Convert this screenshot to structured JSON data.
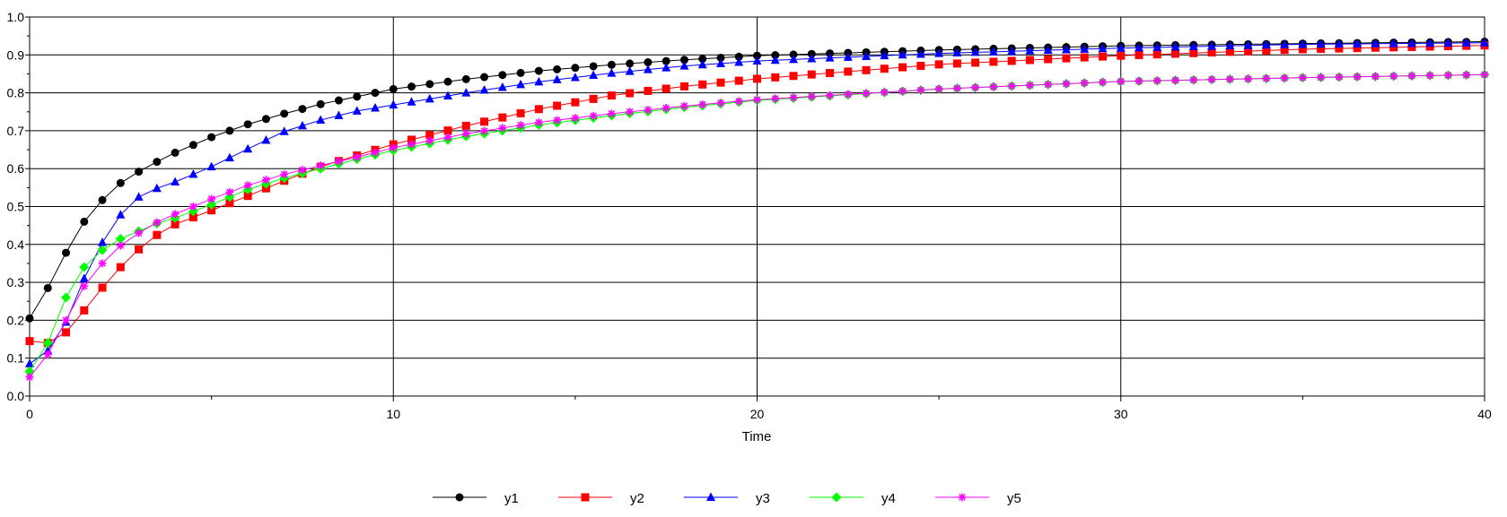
{
  "chart_data": {
    "type": "line",
    "title": "",
    "xlabel": "Time",
    "ylabel": "",
    "xlim": [
      0,
      40
    ],
    "ylim": [
      0,
      1
    ],
    "grid": true,
    "legend_position": "bottom",
    "xticks": [
      {
        "value": 0,
        "label": "0"
      },
      {
        "value": 10,
        "label": "10"
      },
      {
        "value": 20,
        "label": "20"
      },
      {
        "value": 30,
        "label": "30"
      },
      {
        "value": 40,
        "label": "40"
      }
    ],
    "yticks": [
      {
        "value": 0,
        "label": "0.0"
      },
      {
        "value": 0.1,
        "label": "0.1"
      },
      {
        "value": 0.2,
        "label": "0.2"
      },
      {
        "value": 0.3,
        "label": "0.3"
      },
      {
        "value": 0.4,
        "label": "0.4"
      },
      {
        "value": 0.5,
        "label": "0.5"
      },
      {
        "value": 0.6,
        "label": "0.6"
      },
      {
        "value": 0.7,
        "label": "0.7"
      },
      {
        "value": 0.8,
        "label": "0.8"
      },
      {
        "value": 0.9,
        "label": "0.9"
      },
      {
        "value": 1,
        "label": "1.0"
      }
    ],
    "x_step": 0.5,
    "series": [
      {
        "name": "y1",
        "color": "#000000",
        "marker": "circle",
        "anchors": [
          [
            0,
            0.205
          ],
          [
            0.5,
            0.285
          ],
          [
            1,
            0.378
          ],
          [
            1.5,
            0.46
          ],
          [
            2,
            0.517
          ],
          [
            2.5,
            0.562
          ],
          [
            3,
            0.592
          ],
          [
            3.5,
            0.618
          ],
          [
            4,
            0.642
          ],
          [
            5,
            0.683
          ],
          [
            6,
            0.717
          ],
          [
            7,
            0.745
          ],
          [
            8,
            0.77
          ],
          [
            9,
            0.79
          ],
          [
            10,
            0.81
          ],
          [
            12,
            0.836
          ],
          [
            14,
            0.858
          ],
          [
            16,
            0.874
          ],
          [
            18,
            0.887
          ],
          [
            20,
            0.898
          ],
          [
            25,
            0.913
          ],
          [
            30,
            0.924
          ],
          [
            35,
            0.93
          ],
          [
            40,
            0.935
          ]
        ]
      },
      {
        "name": "y2",
        "color": "#ff0000",
        "marker": "square",
        "anchors": [
          [
            0,
            0.145
          ],
          [
            0.5,
            0.14
          ],
          [
            1,
            0.168
          ],
          [
            1.5,
            0.226
          ],
          [
            2,
            0.286
          ],
          [
            2.5,
            0.34
          ],
          [
            3,
            0.387
          ],
          [
            3.5,
            0.425
          ],
          [
            4,
            0.453
          ],
          [
            5,
            0.49
          ],
          [
            6,
            0.528
          ],
          [
            7,
            0.568
          ],
          [
            8,
            0.605
          ],
          [
            9,
            0.635
          ],
          [
            10,
            0.664
          ],
          [
            12,
            0.713
          ],
          [
            14,
            0.757
          ],
          [
            16,
            0.793
          ],
          [
            18,
            0.817
          ],
          [
            20,
            0.837
          ],
          [
            25,
            0.875
          ],
          [
            30,
            0.898
          ],
          [
            35,
            0.915
          ],
          [
            40,
            0.925
          ]
        ]
      },
      {
        "name": "y3",
        "color": "#0000ff",
        "marker": "triangle",
        "anchors": [
          [
            0,
            0.085
          ],
          [
            0.5,
            0.12
          ],
          [
            1,
            0.195
          ],
          [
            1.5,
            0.31
          ],
          [
            2,
            0.405
          ],
          [
            2.5,
            0.478
          ],
          [
            3,
            0.525
          ],
          [
            3.5,
            0.548
          ],
          [
            4,
            0.565
          ],
          [
            5,
            0.605
          ],
          [
            6,
            0.652
          ],
          [
            7,
            0.698
          ],
          [
            8,
            0.728
          ],
          [
            9,
            0.752
          ],
          [
            10,
            0.768
          ],
          [
            12,
            0.8
          ],
          [
            14,
            0.829
          ],
          [
            16,
            0.852
          ],
          [
            18,
            0.871
          ],
          [
            20,
            0.884
          ],
          [
            25,
            0.904
          ],
          [
            30,
            0.918
          ],
          [
            35,
            0.928
          ],
          [
            40,
            0.932
          ]
        ]
      },
      {
        "name": "y4",
        "color": "#00ff00",
        "marker": "diamond",
        "anchors": [
          [
            0,
            0.065
          ],
          [
            0.5,
            0.14
          ],
          [
            1,
            0.26
          ],
          [
            1.5,
            0.34
          ],
          [
            2,
            0.385
          ],
          [
            2.5,
            0.415
          ],
          [
            3,
            0.435
          ],
          [
            3.5,
            0.455
          ],
          [
            4,
            0.47
          ],
          [
            5,
            0.505
          ],
          [
            6,
            0.545
          ],
          [
            7,
            0.575
          ],
          [
            8,
            0.6
          ],
          [
            9,
            0.625
          ],
          [
            10,
            0.648
          ],
          [
            12,
            0.685
          ],
          [
            14,
            0.715
          ],
          [
            16,
            0.74
          ],
          [
            18,
            0.762
          ],
          [
            20,
            0.78
          ],
          [
            25,
            0.81
          ],
          [
            30,
            0.83
          ],
          [
            35,
            0.84
          ],
          [
            40,
            0.848
          ]
        ]
      },
      {
        "name": "y5",
        "color": "#ff00ff",
        "marker": "star",
        "anchors": [
          [
            0,
            0.05
          ],
          [
            0.5,
            0.11
          ],
          [
            1,
            0.2
          ],
          [
            1.5,
            0.29
          ],
          [
            2,
            0.35
          ],
          [
            2.5,
            0.397
          ],
          [
            3,
            0.43
          ],
          [
            3.5,
            0.458
          ],
          [
            4,
            0.48
          ],
          [
            5,
            0.52
          ],
          [
            6,
            0.556
          ],
          [
            7,
            0.585
          ],
          [
            8,
            0.608
          ],
          [
            9,
            0.63
          ],
          [
            10,
            0.655
          ],
          [
            12,
            0.692
          ],
          [
            14,
            0.722
          ],
          [
            16,
            0.745
          ],
          [
            18,
            0.765
          ],
          [
            20,
            0.782
          ],
          [
            25,
            0.81
          ],
          [
            30,
            0.83
          ],
          [
            35,
            0.84
          ],
          [
            40,
            0.848
          ]
        ]
      }
    ]
  }
}
